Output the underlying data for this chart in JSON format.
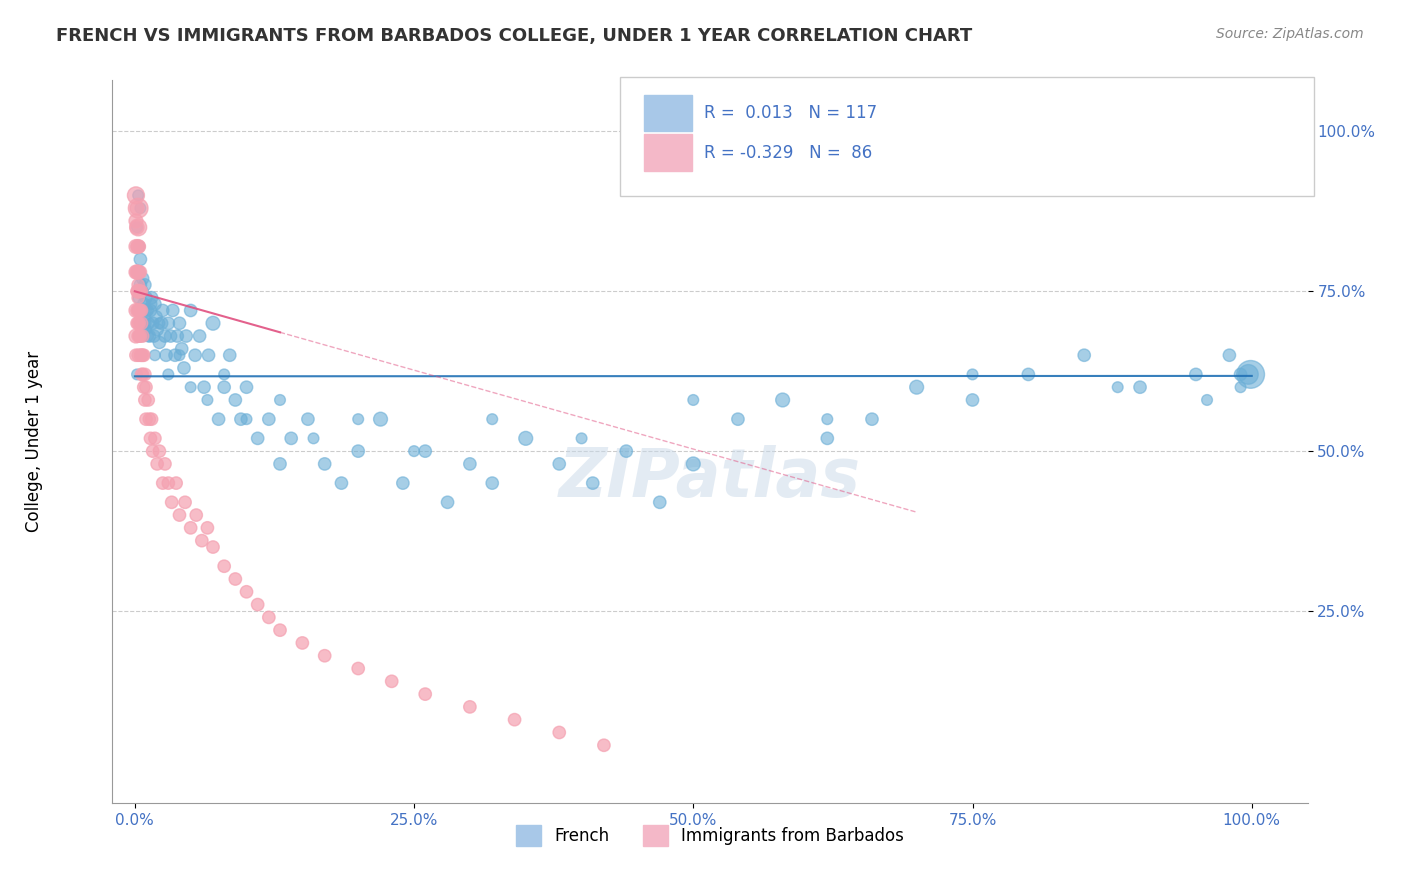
{
  "title": "FRENCH VS IMMIGRANTS FROM BARBADOS COLLEGE, UNDER 1 YEAR CORRELATION CHART",
  "source_text": "Source: ZipAtlas.com",
  "xlabel": "",
  "ylabel": "College, Under 1 year",
  "xlim": [
    0.0,
    1.0
  ],
  "ylim": [
    0.0,
    1.0
  ],
  "xtick_labels": [
    "0.0%",
    "25.0%",
    "50.0%",
    "75.0%",
    "100.0%"
  ],
  "xtick_vals": [
    0.0,
    0.25,
    0.5,
    0.75,
    1.0
  ],
  "ytick_labels": [
    "25.0%",
    "50.0%",
    "75.0%",
    "100.0%"
  ],
  "ytick_vals": [
    0.25,
    0.5,
    0.75,
    1.0
  ],
  "legend_r1": "R =  0.013   N = 117",
  "legend_r2": "R = -0.329   N =  86",
  "blue_color": "#6baed6",
  "pink_color": "#f4a0b0",
  "blue_line_color": "#2171b5",
  "pink_line_color": "#e05080",
  "watermark": "ZIPatlas",
  "french_x": [
    0.002,
    0.003,
    0.003,
    0.004,
    0.004,
    0.005,
    0.005,
    0.005,
    0.006,
    0.006,
    0.007,
    0.007,
    0.008,
    0.008,
    0.009,
    0.009,
    0.01,
    0.01,
    0.011,
    0.012,
    0.013,
    0.014,
    0.015,
    0.016,
    0.017,
    0.018,
    0.019,
    0.02,
    0.022,
    0.024,
    0.025,
    0.027,
    0.028,
    0.03,
    0.032,
    0.034,
    0.036,
    0.038,
    0.04,
    0.042,
    0.044,
    0.046,
    0.05,
    0.054,
    0.058,
    0.062,
    0.066,
    0.07,
    0.075,
    0.08,
    0.085,
    0.09,
    0.095,
    0.1,
    0.11,
    0.12,
    0.13,
    0.14,
    0.155,
    0.17,
    0.185,
    0.2,
    0.22,
    0.24,
    0.26,
    0.28,
    0.3,
    0.32,
    0.35,
    0.38,
    0.41,
    0.44,
    0.47,
    0.5,
    0.54,
    0.58,
    0.62,
    0.66,
    0.7,
    0.75,
    0.8,
    0.85,
    0.9,
    0.95,
    0.98,
    0.99,
    0.002,
    0.003,
    0.004,
    0.005,
    0.007,
    0.008,
    0.01,
    0.012,
    0.015,
    0.018,
    0.022,
    0.03,
    0.04,
    0.05,
    0.065,
    0.08,
    0.1,
    0.13,
    0.16,
    0.2,
    0.25,
    0.32,
    0.4,
    0.5,
    0.62,
    0.75,
    0.88,
    0.96,
    0.99,
    0.997,
    0.999
  ],
  "french_y": [
    0.62,
    0.72,
    0.78,
    0.68,
    0.74,
    0.7,
    0.76,
    0.8,
    0.65,
    0.75,
    0.72,
    0.77,
    0.68,
    0.73,
    0.7,
    0.76,
    0.69,
    0.74,
    0.72,
    0.7,
    0.68,
    0.72,
    0.74,
    0.7,
    0.68,
    0.73,
    0.71,
    0.69,
    0.67,
    0.7,
    0.72,
    0.68,
    0.65,
    0.7,
    0.68,
    0.72,
    0.65,
    0.68,
    0.7,
    0.66,
    0.63,
    0.68,
    0.72,
    0.65,
    0.68,
    0.6,
    0.65,
    0.7,
    0.55,
    0.6,
    0.65,
    0.58,
    0.55,
    0.6,
    0.52,
    0.55,
    0.48,
    0.52,
    0.55,
    0.48,
    0.45,
    0.5,
    0.55,
    0.45,
    0.5,
    0.42,
    0.48,
    0.45,
    0.52,
    0.48,
    0.45,
    0.5,
    0.42,
    0.48,
    0.55,
    0.58,
    0.52,
    0.55,
    0.6,
    0.58,
    0.62,
    0.65,
    0.6,
    0.62,
    0.65,
    0.62,
    0.85,
    0.9,
    0.82,
    0.88,
    0.75,
    0.7,
    0.72,
    0.68,
    0.73,
    0.65,
    0.7,
    0.62,
    0.65,
    0.6,
    0.58,
    0.62,
    0.55,
    0.58,
    0.52,
    0.55,
    0.5,
    0.55,
    0.52,
    0.58,
    0.55,
    0.62,
    0.6,
    0.58,
    0.6,
    0.62,
    0.62
  ],
  "french_s": [
    60,
    60,
    60,
    60,
    80,
    60,
    80,
    80,
    60,
    80,
    80,
    80,
    60,
    80,
    80,
    80,
    60,
    80,
    80,
    80,
    80,
    80,
    80,
    80,
    80,
    80,
    80,
    80,
    80,
    80,
    80,
    80,
    80,
    80,
    80,
    80,
    80,
    80,
    80,
    80,
    80,
    80,
    80,
    80,
    80,
    80,
    80,
    100,
    80,
    80,
    80,
    80,
    80,
    80,
    80,
    80,
    80,
    80,
    80,
    80,
    80,
    80,
    100,
    80,
    80,
    80,
    80,
    80,
    100,
    80,
    80,
    80,
    80,
    100,
    80,
    100,
    80,
    80,
    100,
    80,
    80,
    80,
    80,
    80,
    80,
    80,
    60,
    60,
    60,
    60,
    60,
    60,
    60,
    60,
    60,
    60,
    60,
    60,
    60,
    60,
    60,
    60,
    60,
    60,
    60,
    60,
    60,
    60,
    60,
    60,
    60,
    60,
    60,
    60,
    60,
    200,
    400
  ],
  "barbados_x": [
    0.001,
    0.001,
    0.001,
    0.001,
    0.001,
    0.001,
    0.001,
    0.002,
    0.002,
    0.002,
    0.002,
    0.002,
    0.002,
    0.002,
    0.003,
    0.003,
    0.003,
    0.003,
    0.003,
    0.003,
    0.003,
    0.003,
    0.003,
    0.003,
    0.003,
    0.003,
    0.004,
    0.004,
    0.004,
    0.004,
    0.004,
    0.004,
    0.005,
    0.005,
    0.005,
    0.005,
    0.005,
    0.006,
    0.006,
    0.006,
    0.006,
    0.006,
    0.007,
    0.007,
    0.007,
    0.008,
    0.008,
    0.009,
    0.009,
    0.01,
    0.01,
    0.012,
    0.013,
    0.014,
    0.015,
    0.016,
    0.018,
    0.02,
    0.022,
    0.025,
    0.027,
    0.03,
    0.033,
    0.037,
    0.04,
    0.045,
    0.05,
    0.055,
    0.06,
    0.065,
    0.07,
    0.08,
    0.09,
    0.1,
    0.11,
    0.12,
    0.13,
    0.15,
    0.17,
    0.2,
    0.23,
    0.26,
    0.3,
    0.34,
    0.38,
    0.42
  ],
  "barbados_y": [
    0.72,
    0.78,
    0.82,
    0.86,
    0.9,
    0.65,
    0.68,
    0.85,
    0.88,
    0.75,
    0.78,
    0.82,
    0.7,
    0.72,
    0.75,
    0.78,
    0.82,
    0.85,
    0.88,
    0.72,
    0.76,
    0.68,
    0.7,
    0.74,
    0.78,
    0.65,
    0.72,
    0.75,
    0.78,
    0.82,
    0.68,
    0.7,
    0.72,
    0.75,
    0.78,
    0.68,
    0.65,
    0.7,
    0.72,
    0.75,
    0.65,
    0.62,
    0.68,
    0.65,
    0.62,
    0.65,
    0.6,
    0.62,
    0.58,
    0.6,
    0.55,
    0.58,
    0.55,
    0.52,
    0.55,
    0.5,
    0.52,
    0.48,
    0.5,
    0.45,
    0.48,
    0.45,
    0.42,
    0.45,
    0.4,
    0.42,
    0.38,
    0.4,
    0.36,
    0.38,
    0.35,
    0.32,
    0.3,
    0.28,
    0.26,
    0.24,
    0.22,
    0.2,
    0.18,
    0.16,
    0.14,
    0.12,
    0.1,
    0.08,
    0.06,
    0.04
  ],
  "barbados_s": [
    100,
    100,
    100,
    100,
    150,
    80,
    100,
    100,
    100,
    80,
    100,
    80,
    80,
    80,
    100,
    100,
    100,
    150,
    200,
    80,
    80,
    80,
    80,
    80,
    80,
    80,
    80,
    80,
    80,
    80,
    80,
    80,
    80,
    80,
    80,
    80,
    80,
    80,
    80,
    80,
    80,
    80,
    80,
    80,
    80,
    80,
    80,
    80,
    80,
    80,
    80,
    80,
    80,
    80,
    80,
    80,
    80,
    80,
    80,
    80,
    80,
    80,
    80,
    80,
    80,
    80,
    80,
    80,
    80,
    80,
    80,
    80,
    80,
    80,
    80,
    80,
    80,
    80,
    80,
    80,
    80,
    80,
    80,
    80,
    80,
    80
  ]
}
